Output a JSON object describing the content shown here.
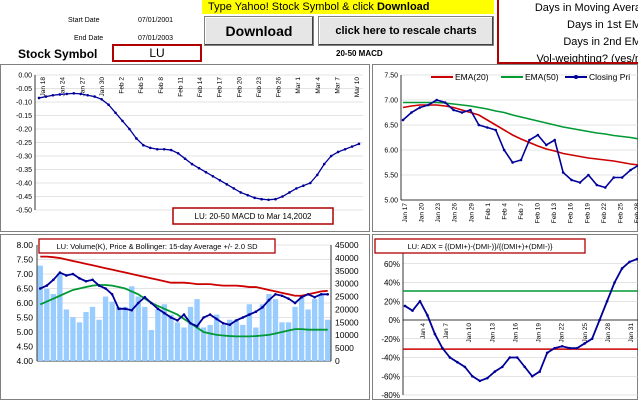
{
  "header": {
    "start_date_label": "Start Date",
    "start_date_value": "07/01/2001",
    "end_date_label": "End Date",
    "end_date_value": "07/01/2003",
    "symbol_label": "Stock Symbol",
    "symbol_value": "LU",
    "yahoo_prompt_prefix": "Type Yahoo! Stock Symbol & click ",
    "yahoo_prompt_bold": "Download",
    "download_label": "Download",
    "rescale_label": "click here to rescale charts",
    "macd_label": "20-50  MACD",
    "right_lines": [
      "Days in Moving Avera",
      "Days in 1st EM",
      "Days in 2nd EM",
      "Vol-weighting?  (yes/n"
    ]
  },
  "colors": {
    "red": "#cc0000",
    "green": "#009933",
    "blue": "#000099",
    "lightblue": "#99ccff",
    "accent_border": "#b00000"
  },
  "chart_data": [
    {
      "id": "macd",
      "type": "line",
      "title": "LU: 20-50  MACD to Mar 14,2002",
      "ylim": [
        -0.5,
        0.0
      ],
      "yticks": [
        "0.00",
        "-0.05",
        "-0.10",
        "-0.15",
        "-0.20",
        "-0.25",
        "-0.30",
        "-0.35",
        "-0.40",
        "-0.45",
        "-0.50"
      ],
      "xticks": [
        "Jan 18",
        "Jan 24",
        "Jan 27",
        "Jan 30",
        "Feb 2",
        "Feb 5",
        "Feb 8",
        "Feb 11",
        "Feb 14",
        "Feb 17",
        "Feb 20",
        "Feb 23",
        "Feb 26",
        "Mar 1",
        "Mar 4",
        "Mar 7",
        "Mar 10"
      ],
      "series": [
        {
          "values": [
            -0.085,
            -0.08,
            -0.075,
            -0.072,
            -0.07,
            -0.068,
            -0.07,
            -0.075,
            -0.08,
            -0.09,
            -0.11,
            -0.14,
            -0.17,
            -0.2,
            -0.235,
            -0.26,
            -0.27,
            -0.275,
            -0.275,
            -0.278,
            -0.29,
            -0.31,
            -0.33,
            -0.345,
            -0.36,
            -0.375,
            -0.39,
            -0.405,
            -0.42,
            -0.435,
            -0.445,
            -0.455,
            -0.46,
            -0.462,
            -0.46,
            -0.45,
            -0.435,
            -0.42,
            -0.41,
            -0.4,
            -0.37,
            -0.33,
            -0.3,
            -0.285,
            -0.275,
            -0.265,
            -0.255
          ]
        }
      ]
    },
    {
      "id": "ema",
      "type": "line",
      "ylim": [
        5.0,
        7.5
      ],
      "yticks": [
        "7.50",
        "7.00",
        "6.50",
        "6.00",
        "5.50",
        "5.00"
      ],
      "xticks": [
        "Jan 17",
        "Jan 20",
        "Jan 23",
        "Jan 26",
        "Jan 29",
        "Feb 1",
        "Feb 4",
        "Feb 7",
        "Feb 10",
        "Feb 13",
        "Feb 16",
        "Feb 19",
        "Feb 22",
        "Feb 25",
        "Feb 28"
      ],
      "legend": [
        "EMA(20)",
        "EMA(50)",
        "Closing Pri"
      ],
      "series": [
        {
          "name": "EMA(20)",
          "color": "red",
          "values": [
            6.85,
            6.88,
            6.9,
            6.9,
            6.9,
            6.88,
            6.85,
            6.8,
            6.75,
            6.7,
            6.6,
            6.5,
            6.4,
            6.3,
            6.22,
            6.15,
            6.08,
            6.02,
            5.98,
            5.93,
            5.9,
            5.87,
            5.84,
            5.82,
            5.8,
            5.78,
            5.75,
            5.72,
            5.7
          ]
        },
        {
          "name": "EMA(50)",
          "color": "green",
          "values": [
            6.95,
            6.95,
            6.95,
            6.95,
            6.95,
            6.94,
            6.92,
            6.9,
            6.88,
            6.85,
            6.82,
            6.78,
            6.75,
            6.7,
            6.66,
            6.62,
            6.58,
            6.54,
            6.5,
            6.46,
            6.43,
            6.4,
            6.37,
            6.34,
            6.32,
            6.29,
            6.27,
            6.25,
            6.22
          ]
        },
        {
          "name": "Closing Pri",
          "color": "blue",
          "values": [
            6.6,
            6.75,
            6.85,
            6.9,
            7.0,
            6.95,
            6.8,
            6.75,
            6.8,
            6.5,
            6.45,
            6.4,
            6.0,
            5.75,
            5.8,
            6.2,
            6.3,
            6.1,
            6.2,
            5.55,
            5.4,
            5.35,
            5.5,
            5.3,
            5.25,
            5.45,
            5.45,
            5.6,
            5.7
          ]
        }
      ]
    },
    {
      "id": "volume",
      "type": "bar",
      "title": "LU: Volume(K), Price & Bollinger: 15-day Average +/- 2.0 SD",
      "ylim_left": [
        4.0,
        8.0
      ],
      "ylim_right": [
        0,
        45000
      ],
      "yticks_left": [
        "8.00",
        "7.50",
        "7.00",
        "6.50",
        "6.00",
        "5.50",
        "5.00",
        "4.50",
        "4.00"
      ],
      "yticks_right": [
        "45000",
        "40000",
        "35000",
        "30000",
        "25000",
        "20000",
        "15000",
        "10000",
        "5000",
        "0"
      ],
      "volumes": [
        37000,
        28000,
        26000,
        34000,
        20000,
        17000,
        15000,
        19000,
        21000,
        16000,
        25000,
        23000,
        21000,
        21000,
        29000,
        25000,
        21000,
        12000,
        20000,
        22000,
        18000,
        15000,
        13000,
        21000,
        24000,
        13000,
        14000,
        18000,
        14000,
        16000,
        16000,
        14000,
        22000,
        13000,
        22000,
        26000,
        24000,
        15000,
        15000,
        21000,
        25000,
        20000,
        24000,
        26000,
        16000
      ],
      "series": [
        {
          "name": "upper",
          "color": "red",
          "values": [
            7.6,
            7.6,
            7.58,
            7.55,
            7.5,
            7.45,
            7.4,
            7.35,
            7.3,
            7.25,
            7.2,
            7.15,
            7.1,
            7.05,
            7.0,
            6.95,
            6.9,
            6.85,
            6.8,
            6.75,
            6.7,
            6.7,
            6.7,
            6.68,
            6.65,
            6.65,
            6.65,
            6.62,
            6.6,
            6.6,
            6.6,
            6.58,
            6.55,
            6.55,
            6.5,
            6.45,
            6.4,
            6.35,
            6.3,
            6.25,
            6.25,
            6.3,
            6.35,
            6.4,
            6.42
          ]
        },
        {
          "name": "average",
          "color": "green",
          "values": [
            5.95,
            6.05,
            6.15,
            6.25,
            6.35,
            6.45,
            6.5,
            6.55,
            6.6,
            6.62,
            6.62,
            6.6,
            6.55,
            6.5,
            6.4,
            6.3,
            6.15,
            6.0,
            5.9,
            5.8,
            5.7,
            5.6,
            5.45,
            5.3,
            5.15,
            5.0,
            4.95,
            4.9,
            4.88,
            4.86,
            4.85,
            4.85,
            4.85,
            4.86,
            4.88,
            4.9,
            4.95,
            5.0,
            5.05,
            5.1,
            5.1,
            5.08,
            5.08,
            5.08,
            5.08
          ]
        },
        {
          "name": "price",
          "color": "blue",
          "values": [
            6.5,
            6.6,
            6.8,
            7.05,
            6.95,
            7.0,
            6.85,
            6.75,
            6.8,
            6.6,
            6.5,
            6.3,
            5.8,
            5.8,
            5.75,
            6.0,
            6.2,
            6.0,
            5.8,
            5.65,
            5.5,
            5.4,
            5.6,
            5.3,
            5.2,
            5.5,
            5.6,
            5.45,
            5.3,
            5.25,
            5.4,
            5.5,
            5.6,
            5.7,
            5.85,
            6.1,
            6.3,
            6.25,
            6.15,
            6.0,
            6.2,
            6.3,
            6.2,
            6.3,
            6.3
          ]
        }
      ]
    },
    {
      "id": "adx",
      "type": "line",
      "title": "LU: ADX = {(DMI+)-(DMI-)}/{(DMI+)+(DMI-)}",
      "ylim": [
        -80,
        80
      ],
      "yticks": [
        "60%",
        "40%",
        "20%",
        "0%",
        "-20%",
        "-40%",
        "-60%",
        "-80%"
      ],
      "xticks": [
        "Jan 4",
        "Jan 7",
        "Jan 10",
        "Jan 13",
        "Jan 16",
        "Jan 19",
        "Jan 22",
        "Jan 25",
        "Jan 28",
        "Jan 31"
      ],
      "series": [
        {
          "name": "upper",
          "color": "green",
          "values": [
            31,
            31
          ]
        },
        {
          "name": "lower",
          "color": "red",
          "values": [
            -31,
            -31
          ]
        },
        {
          "name": "adx",
          "color": "blue",
          "values": [
            15,
            10,
            20,
            5,
            -15,
            -30,
            -40,
            -45,
            -50,
            -60,
            -65,
            -62,
            -55,
            -50,
            -40,
            -40,
            -50,
            -60,
            -55,
            -35,
            -30,
            -28,
            -30,
            -30,
            -25,
            -20,
            0,
            20,
            40,
            55,
            62,
            65
          ]
        }
      ]
    }
  ]
}
